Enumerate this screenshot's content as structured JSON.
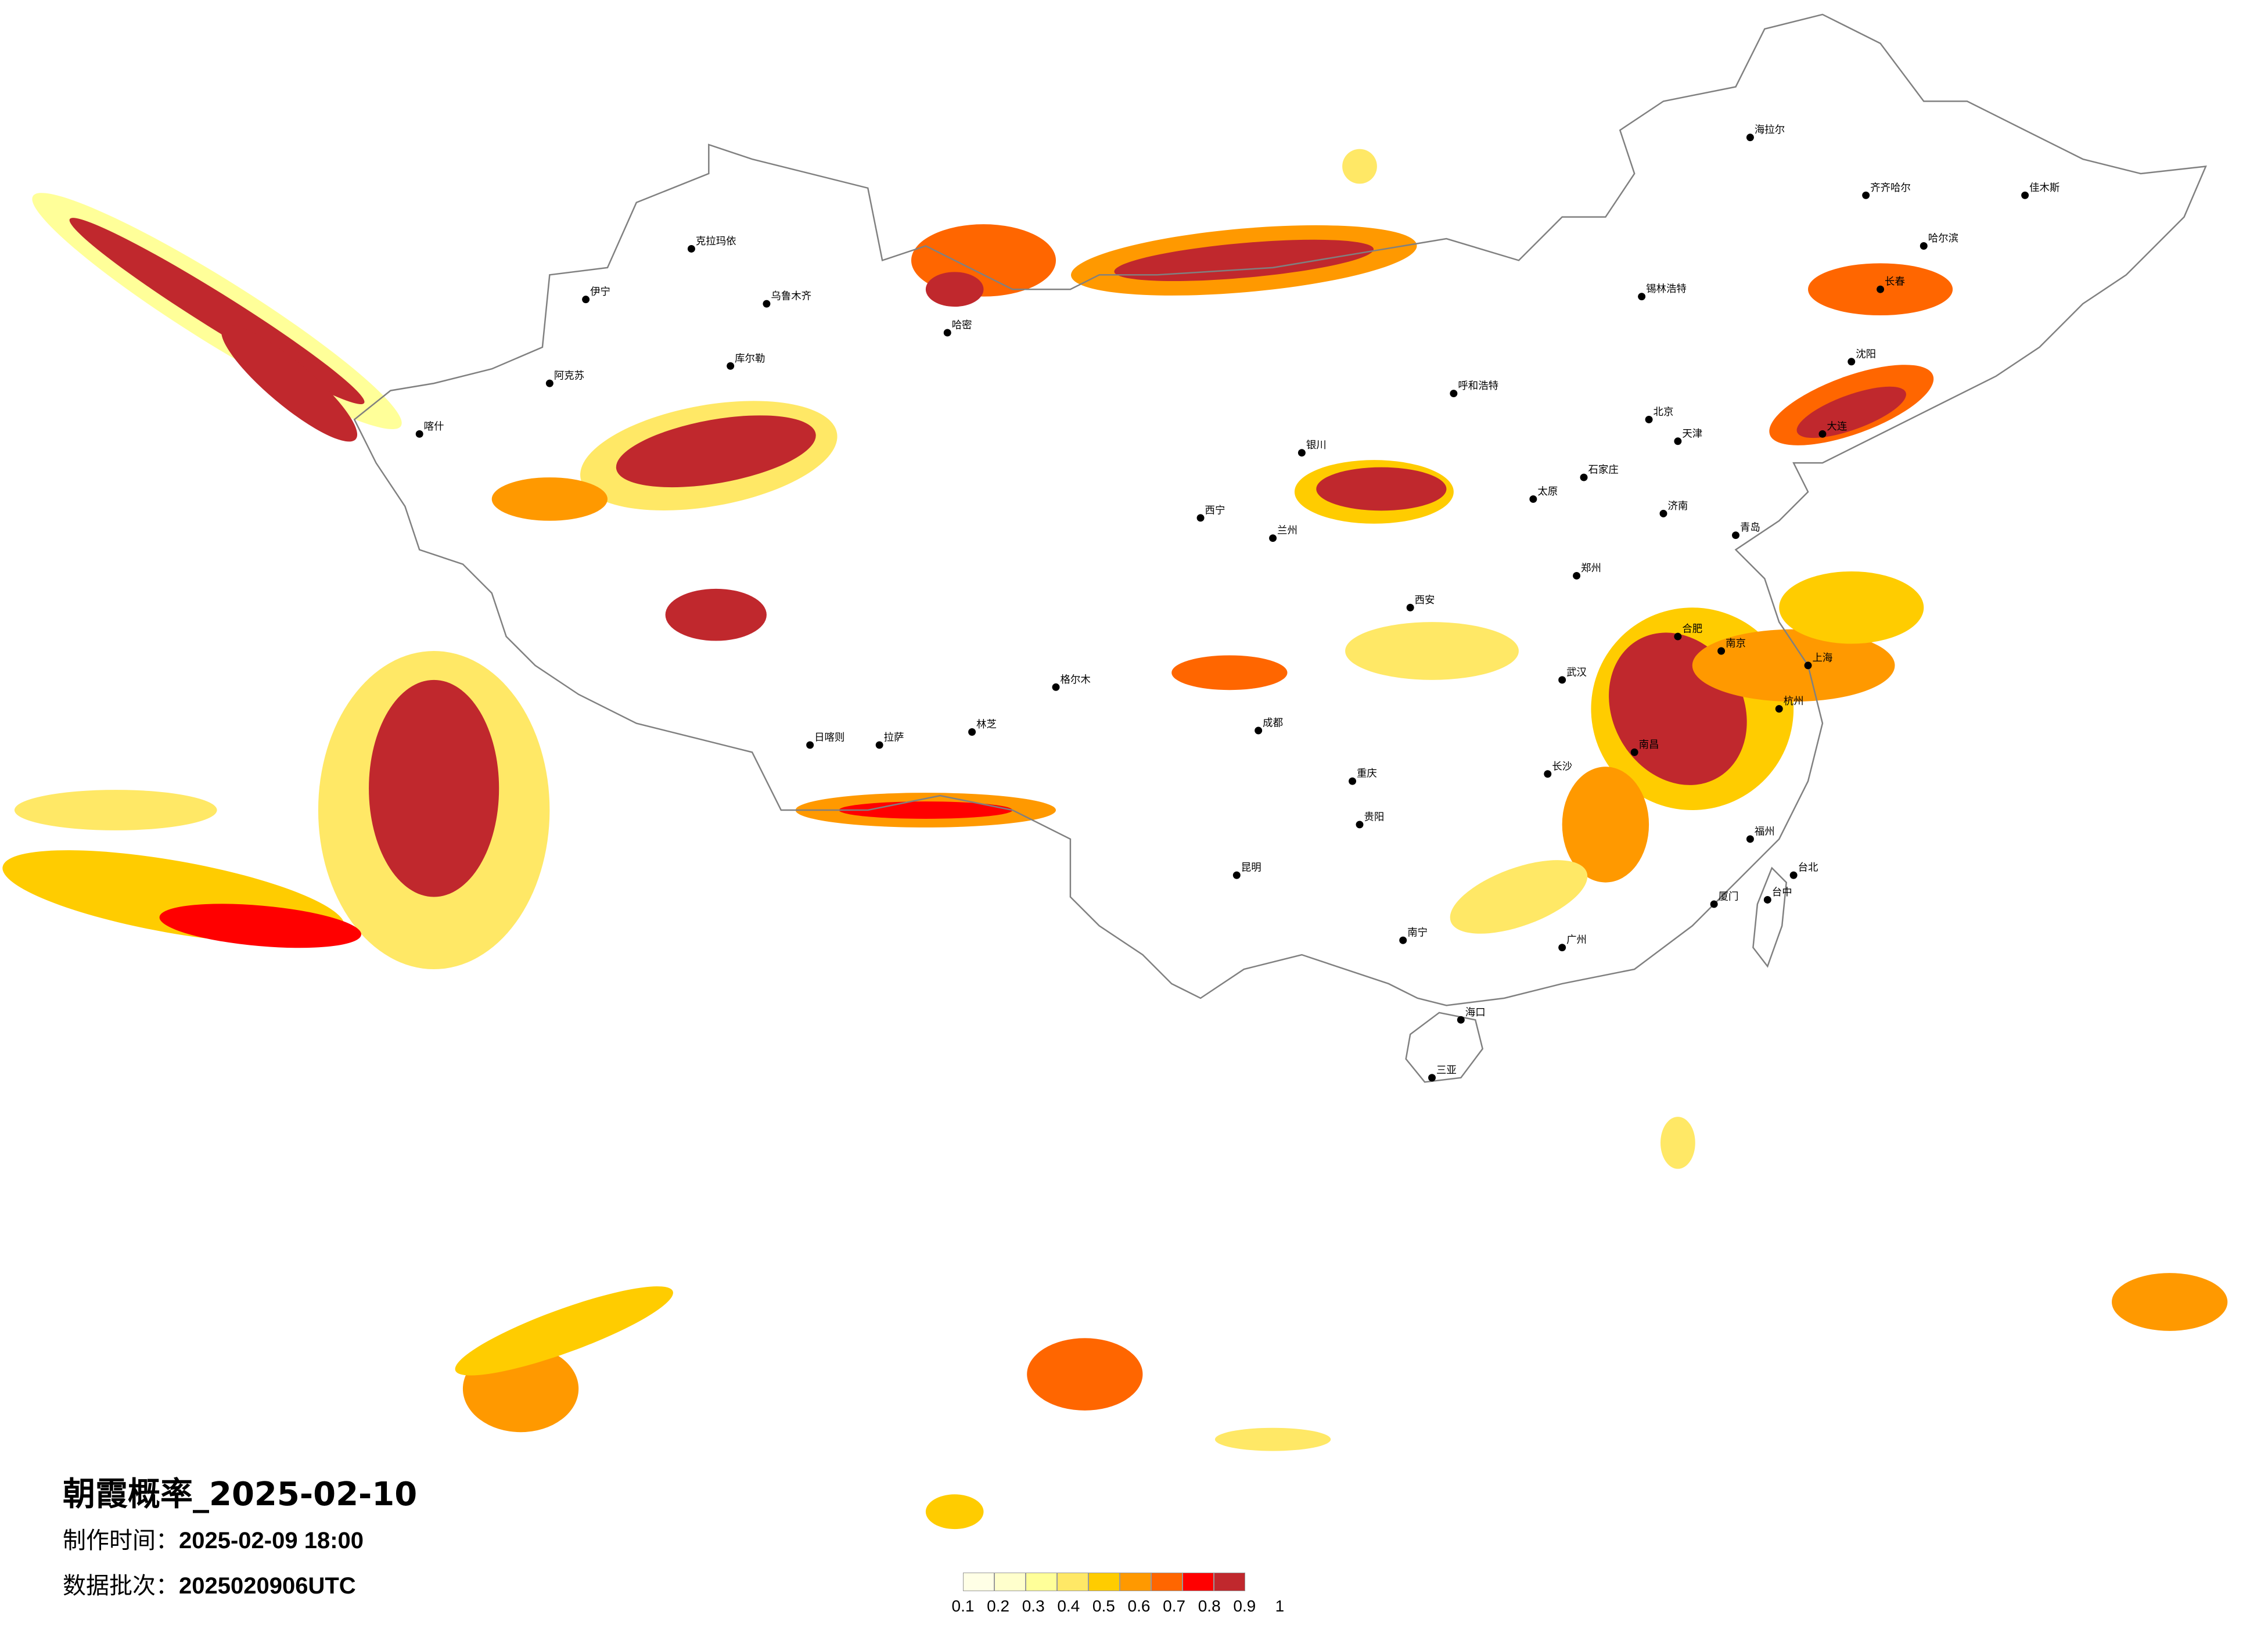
{
  "title": "朝霞概率_2025-02-10",
  "made_time_label": "制作时间：",
  "made_time": "2025-02-09 18:00",
  "batch_label": "数据批次：",
  "batch": "2025020906UTC",
  "legend": {
    "ticks": [
      "0.1",
      "0.2",
      "0.3",
      "0.4",
      "0.5",
      "0.6",
      "0.7",
      "0.8",
      "0.9",
      "1"
    ],
    "colors": [
      "#FFFFE6",
      "#FFFFCC",
      "#FFFF99",
      "#FFE866",
      "#FFCC00",
      "#FF9900",
      "#FF6600",
      "#FF0000",
      "#C0282D"
    ]
  },
  "colors": {
    "boundary": "#808080",
    "city_dot": "#000000"
  },
  "cities": [
    {
      "name": "克拉玛依"
    },
    {
      "name": "乌鲁木齐"
    },
    {
      "name": "伊宁"
    },
    {
      "name": "阿克苏"
    },
    {
      "name": "喀什"
    },
    {
      "name": "库尔勒"
    },
    {
      "name": "哈密"
    },
    {
      "name": "拉萨"
    },
    {
      "name": "日喀则"
    },
    {
      "name": "林芝"
    },
    {
      "name": "格尔木"
    },
    {
      "name": "西宁"
    },
    {
      "name": "兰州"
    },
    {
      "name": "银川"
    },
    {
      "name": "呼和浩特"
    },
    {
      "name": "北京"
    },
    {
      "name": "天津"
    },
    {
      "name": "石家庄"
    },
    {
      "name": "太原"
    },
    {
      "name": "济南"
    },
    {
      "name": "郑州"
    },
    {
      "name": "西安"
    },
    {
      "name": "武汉"
    },
    {
      "name": "合肥"
    },
    {
      "name": "南京"
    },
    {
      "name": "上海"
    },
    {
      "name": "杭州"
    },
    {
      "name": "长沙"
    },
    {
      "name": "南昌"
    },
    {
      "name": "福州"
    },
    {
      "name": "广州"
    },
    {
      "name": "南宁"
    },
    {
      "name": "贵阳"
    },
    {
      "name": "昆明"
    },
    {
      "name": "成都"
    },
    {
      "name": "重庆"
    },
    {
      "name": "哈尔滨"
    },
    {
      "name": "长春"
    },
    {
      "name": "沈阳"
    },
    {
      "name": "大连"
    },
    {
      "name": "海口"
    },
    {
      "name": "台北"
    },
    {
      "name": "锡林浩特"
    },
    {
      "name": "海拉尔"
    },
    {
      "name": "齐齐哈尔"
    },
    {
      "name": "佳木斯"
    },
    {
      "name": "青岛"
    },
    {
      "name": "厦门"
    },
    {
      "name": "台中"
    },
    {
      "name": "三亚"
    }
  ]
}
